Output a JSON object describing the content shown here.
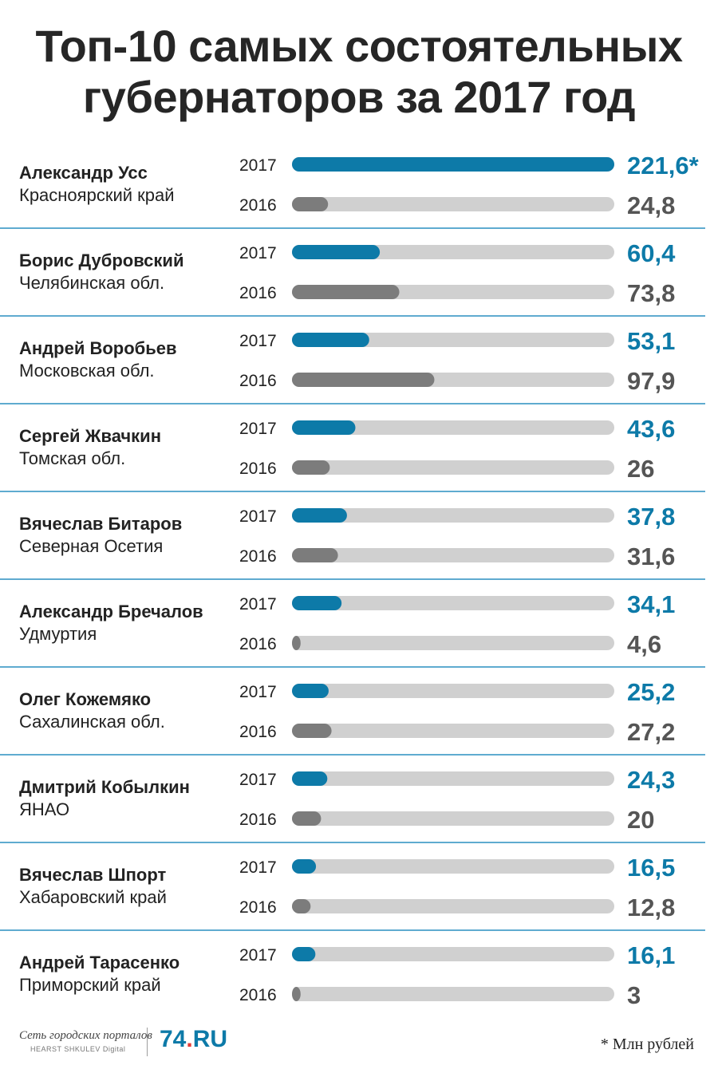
{
  "title": {
    "line1": "Топ-10 самых состоятельных",
    "line2": "губернаторов за 2017 год"
  },
  "colors": {
    "bar_2017": "#0d7aa8",
    "bar_2016": "#7c7c7c",
    "track": "#d0d0d0",
    "value_2017": "#0d7aa8",
    "value_2016": "#555555",
    "divider": "#2a8fc0"
  },
  "chart_data": {
    "type": "bar",
    "orientation": "horizontal",
    "xlim": [
      0,
      221.6
    ],
    "series_labels": [
      "2017",
      "2016"
    ],
    "rows": [
      {
        "name": "Александр Усс",
        "region": "Красноярский край",
        "v2017": 221.6,
        "v2016": 24.8,
        "label2017": "221,6*",
        "label2016": "24,8"
      },
      {
        "name": "Борис Дубровский",
        "region": "Челябинская обл.",
        "v2017": 60.4,
        "v2016": 73.8,
        "label2017": "60,4",
        "label2016": "73,8"
      },
      {
        "name": "Андрей Воробьев",
        "region": "Московская обл.",
        "v2017": 53.1,
        "v2016": 97.9,
        "label2017": "53,1",
        "label2016": "97,9"
      },
      {
        "name": "Сергей Жвачкин",
        "region": "Томская обл.",
        "v2017": 43.6,
        "v2016": 26,
        "label2017": "43,6",
        "label2016": "26"
      },
      {
        "name": "Вячеслав Битаров",
        "region": "Северная Осетия",
        "v2017": 37.8,
        "v2016": 31.6,
        "label2017": "37,8",
        "label2016": "31,6"
      },
      {
        "name": "Александр Бречалов",
        "region": "Удмуртия",
        "v2017": 34.1,
        "v2016": 4.6,
        "label2017": "34,1",
        "label2016": "4,6"
      },
      {
        "name": "Олег Кожемяко",
        "region": "Сахалинская обл.",
        "v2017": 25.2,
        "v2016": 27.2,
        "label2017": "25,2",
        "label2016": "27,2"
      },
      {
        "name": "Дмитрий Кобылкин",
        "region": "ЯНАО",
        "v2017": 24.3,
        "v2016": 20,
        "label2017": "24,3",
        "label2016": "20"
      },
      {
        "name": "Вячеслав Шпорт",
        "region": "Хабаровский край",
        "v2017": 16.5,
        "v2016": 12.8,
        "label2017": "16,5",
        "label2016": "12,8"
      },
      {
        "name": "Андрей Тарасенко",
        "region": "Приморский край",
        "v2017": 16.1,
        "v2016": 3,
        "label2017": "16,1",
        "label2016": "3"
      }
    ]
  },
  "footer": {
    "network_name": "Сеть городских порталов",
    "network_sub": "HEARST SHKULEV Digital",
    "brand_main": "74",
    "brand_dot": ".",
    "brand_tld": "RU",
    "footnote": "* Млн рублей"
  }
}
